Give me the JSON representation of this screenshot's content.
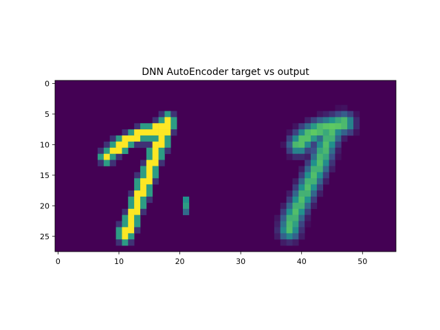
{
  "chart_data": {
    "type": "heatmap",
    "title": "DNN AutoEncoder target vs output",
    "xlabel": "",
    "ylabel": "",
    "image_size": [
      28,
      56
    ],
    "xlim": [
      -0.5,
      55.5
    ],
    "ylim": [
      27.5,
      -0.5
    ],
    "x_ticks": [
      0,
      10,
      20,
      30,
      40,
      50
    ],
    "y_ticks": [
      0,
      5,
      10,
      15,
      20,
      25
    ],
    "colormap": "viridis",
    "value_range": [
      0,
      1
    ],
    "background_color": "#440154",
    "panels": [
      {
        "name": "target",
        "x_range": [
          0,
          27
        ],
        "strokes": [
          {
            "points": [
              [
                18,
                6
              ],
              [
                17,
                7
              ],
              [
                15,
                8
              ],
              [
                13,
                8.5
              ],
              [
                11,
                9.5
              ],
              [
                9,
                11
              ],
              [
                8,
                12
              ]
            ],
            "intensity": 1.0
          },
          {
            "points": [
              [
                18,
                6
              ],
              [
                17,
                9
              ],
              [
                15.5,
                13
              ],
              [
                14,
                17
              ],
              [
                12.5,
                21
              ],
              [
                11,
                25
              ]
            ],
            "intensity": 1.0
          }
        ],
        "speckles": [
          [
            21,
            19,
            0.5
          ],
          [
            21,
            20,
            0.55
          ],
          [
            21,
            21,
            0.35
          ]
        ]
      },
      {
        "name": "output",
        "x_range": [
          28,
          55
        ],
        "strokes": [
          {
            "points": [
              [
                47,
                6.5
              ],
              [
                45,
                7
              ],
              [
                43,
                7.5
              ],
              [
                41,
                8.5
              ],
              [
                39.5,
                10
              ]
            ],
            "intensity": 0.75
          },
          {
            "points": [
              [
                45,
                8
              ],
              [
                44,
                10
              ],
              [
                43,
                13
              ],
              [
                41.5,
                16
              ],
              [
                40,
                19
              ],
              [
                38.5,
                22
              ],
              [
                38,
                24
              ]
            ],
            "intensity": 0.7
          }
        ]
      }
    ]
  }
}
